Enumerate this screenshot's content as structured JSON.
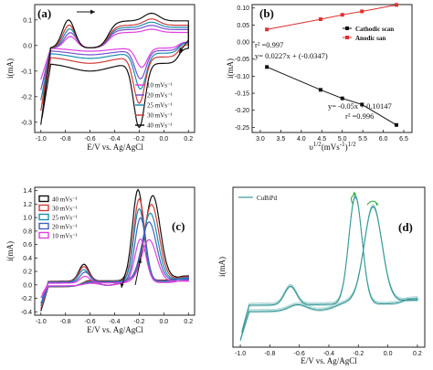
{
  "chart_data": [
    {
      "panel": "(a)",
      "type": "line",
      "xlabel": "E/V vs. Ag/AgCl",
      "ylabel": "i(mA)",
      "xlim": [
        -1.05,
        0.25
      ],
      "ylim": [
        -0.34,
        0.16
      ],
      "xticks": [
        -1.0,
        -0.8,
        -0.6,
        -0.4,
        -0.2,
        0.0,
        0.2
      ],
      "yticks": [
        0.1,
        0.0,
        -0.1,
        -0.2,
        -0.3
      ],
      "legend_position": "bottom-right",
      "colors": {
        "10": "#e040e0",
        "20": "#7a4fd0",
        "25": "#1a8fb0",
        "30": "#d23a3a",
        "40": "#111111"
      },
      "series": [
        {
          "name": "10 mVs⁻¹",
          "scan_rate": 10,
          "oxidation_peak": [
            -0.76,
            0.045
          ],
          "reduction_peak": [
            -0.18,
            -0.075
          ],
          "plateau": 0.072,
          "cathodic_base": -0.02
        },
        {
          "name": "20 mVs⁻¹",
          "scan_rate": 20,
          "oxidation_peak": [
            -0.76,
            0.06
          ],
          "reduction_peak": [
            -0.19,
            -0.11
          ],
          "plateau": 0.085,
          "cathodic_base": -0.04
        },
        {
          "name": "25 mVs⁻¹",
          "scan_rate": 25,
          "oxidation_peak": [
            -0.765,
            0.075
          ],
          "reduction_peak": [
            -0.19,
            -0.14
          ],
          "plateau": 0.095,
          "cathodic_base": -0.06
        },
        {
          "name": "30 mVs⁻¹",
          "scan_rate": 30,
          "oxidation_peak": [
            -0.77,
            0.09
          ],
          "reduction_peak": [
            -0.2,
            -0.18
          ],
          "plateau": 0.105,
          "cathodic_base": -0.09
        },
        {
          "name": "40 mVs⁻¹",
          "scan_rate": 40,
          "oxidation_peak": [
            -0.775,
            0.11
          ],
          "reduction_peak": [
            -0.2,
            -0.25
          ],
          "plateau": 0.125,
          "cathodic_base": -0.14
        }
      ]
    },
    {
      "panel": "(b)",
      "type": "line",
      "xlabel": "υ1/2(mVs-1)1/2",
      "ylabel": "i(mA)",
      "xlim": [
        2.8,
        6.7
      ],
      "ylim": [
        -0.265,
        0.11
      ],
      "xticks": [
        3.0,
        3.5,
        4.0,
        4.5,
        5.0,
        5.5,
        6.0,
        6.5
      ],
      "yticks": [
        0.1,
        0.05,
        0.0,
        -0.05,
        -0.1,
        -0.15,
        -0.2,
        -0.25
      ],
      "legend_position": "top-right",
      "series": [
        {
          "name": "Cathodic scan",
          "color": "#111111",
          "x": [
            3.16,
            4.47,
            5.0,
            5.48,
            6.32
          ],
          "y": [
            -0.073,
            -0.14,
            -0.165,
            -0.183,
            -0.243
          ]
        },
        {
          "name": "Anodic san",
          "color": "#e03030",
          "x": [
            3.16,
            4.47,
            5.0,
            5.48,
            6.32
          ],
          "y": [
            0.037,
            0.067,
            0.08,
            0.09,
            0.109
          ]
        }
      ],
      "annotations": [
        {
          "text": "r² =0.997"
        },
        {
          "text": "y= 0.0227x + (-0.0347)"
        },
        {
          "text": "y= -0.05x + 0.10147"
        },
        {
          "text": "r² =0.996"
        }
      ]
    },
    {
      "panel": "(c)",
      "type": "line",
      "xlabel": "E/V vs. Ag/AgCl",
      "ylabel": "i(mA)",
      "xlim": [
        -1.05,
        0.25
      ],
      "ylim": [
        -0.45,
        1.45
      ],
      "xticks": [
        -1.0,
        -0.8,
        -0.6,
        -0.4,
        -0.2,
        0.0,
        0.2
      ],
      "yticks": [
        1.4,
        1.2,
        1.0,
        0.8,
        0.6,
        0.4,
        0.2,
        0.0,
        -0.2,
        -0.4
      ],
      "legend_position": "top-left",
      "colors": {
        "40": "#111111",
        "30": "#d23a3a",
        "25": "#1a8fb0",
        "20": "#4060c0",
        "10": "#e040e0"
      },
      "series": [
        {
          "name": "40 mVs⁻¹",
          "scan_rate": 40,
          "peak1": [
            -0.21,
            1.35
          ],
          "peak2": [
            -0.09,
            1.22
          ],
          "small_peak": [
            -0.65,
            0.25
          ]
        },
        {
          "name": "30 mVs⁻¹",
          "scan_rate": 30,
          "peak1": [
            -0.2,
            1.22
          ],
          "peak2": [
            -0.1,
            1.1
          ],
          "small_peak": [
            -0.65,
            0.22
          ]
        },
        {
          "name": "25 mVs⁻¹",
          "scan_rate": 25,
          "peak1": [
            -0.2,
            1.08
          ],
          "peak2": [
            -0.11,
            0.98
          ],
          "small_peak": [
            -0.65,
            0.18
          ]
        },
        {
          "name": "20 mVs⁻¹",
          "scan_rate": 20,
          "peak1": [
            -0.19,
            0.95
          ],
          "peak2": [
            -0.12,
            0.86
          ],
          "small_peak": [
            -0.64,
            0.15
          ]
        },
        {
          "name": "10 mVs⁻¹",
          "scan_rate": 10,
          "peak1": [
            -0.19,
            0.65
          ],
          "peak2": [
            -0.12,
            0.62
          ],
          "small_peak": [
            -0.64,
            0.1
          ]
        }
      ]
    },
    {
      "panel": "(d)",
      "type": "line",
      "xlabel": "E/V vs. Ag/AgCl",
      "ylabel": "i(mA)",
      "xlim": [
        -1.05,
        0.25
      ],
      "ylim": [
        -0.45,
        1.45
      ],
      "xticks": [
        -1.0,
        -0.8,
        -0.6,
        -0.4,
        -0.2,
        0.0,
        0.2
      ],
      "yticks": [],
      "legend_position": "top-left",
      "series": [
        {
          "name": "CuBiPd",
          "color": "#3a9a9a",
          "peak1": [
            -0.22,
            1.28
          ],
          "peak2": [
            -0.1,
            1.12
          ],
          "small_peak": [
            -0.66,
            0.22
          ]
        }
      ]
    }
  ]
}
